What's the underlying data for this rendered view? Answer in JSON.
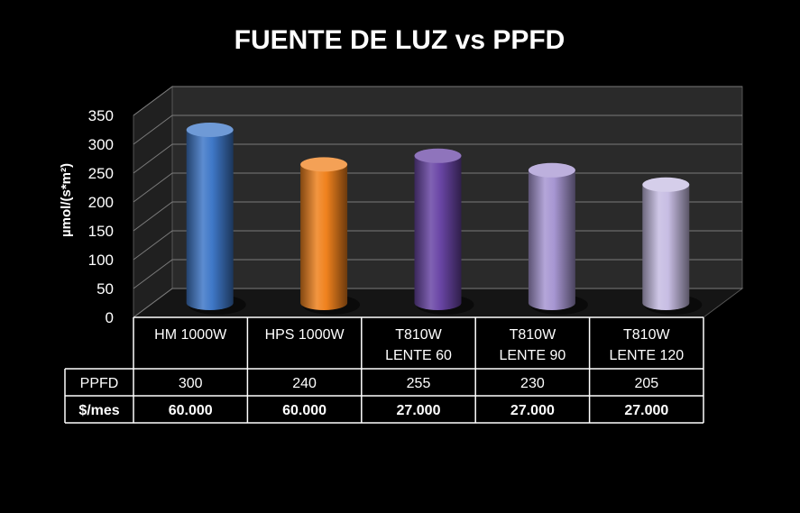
{
  "chart_data": {
    "type": "bar",
    "title": "FUENTE DE LUZ vs PPFD",
    "ylabel": "µmol/(s*m²)",
    "ylim": [
      0,
      350
    ],
    "yticks": [
      0,
      50,
      100,
      150,
      200,
      250,
      300,
      350
    ],
    "grid": true,
    "categories": [
      [
        "HM 1000W"
      ],
      [
        "HPS 1000W"
      ],
      [
        "T810W",
        "LENTE 60"
      ],
      [
        "T810W",
        "LENTE 90"
      ],
      [
        "T810W",
        "LENTE 120"
      ]
    ],
    "series": [
      {
        "name": "PPFD",
        "values": [
          300,
          240,
          255,
          230,
          205
        ],
        "colors": [
          "#3f78c8",
          "#f0821e",
          "#6a46a6",
          "#a796d2",
          "#c7bde3"
        ]
      }
    ],
    "table": [
      {
        "label": "PPFD",
        "values": [
          "300",
          "240",
          "255",
          "230",
          "205"
        ],
        "bold": false
      },
      {
        "label": "$/mes",
        "values": [
          "60.000",
          "60.000",
          "27.000",
          "27.000",
          "27.000"
        ],
        "bold": true
      }
    ]
  }
}
